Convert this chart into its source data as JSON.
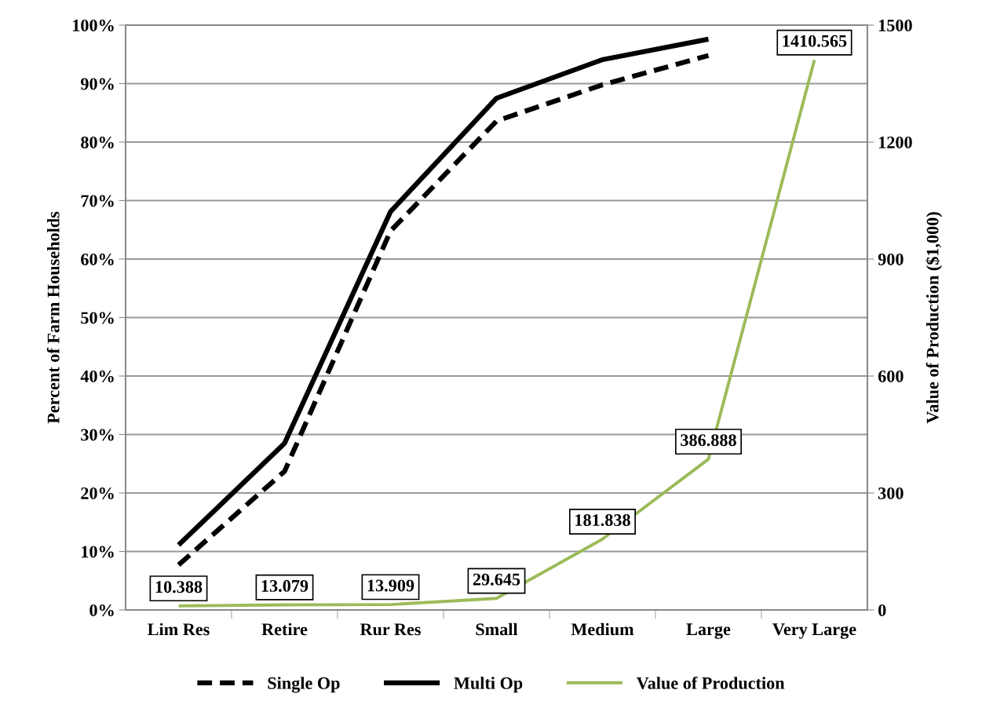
{
  "chart_data": {
    "type": "line",
    "categories": [
      "Lim Res",
      "Retire",
      "Rur Res",
      "Small",
      "Medium",
      "Large",
      "Very Large"
    ],
    "ylabel": "Percent of Farm Households",
    "y2label": "Value of Production ($1,000)",
    "ylim": [
      0,
      100
    ],
    "yticks": [
      {
        "value": 0,
        "label": "0%"
      },
      {
        "value": 10,
        "label": "10%"
      },
      {
        "value": 20,
        "label": "20%"
      },
      {
        "value": 30,
        "label": "30%"
      },
      {
        "value": 40,
        "label": "40%"
      },
      {
        "value": 50,
        "label": "50%"
      },
      {
        "value": 60,
        "label": "60%"
      },
      {
        "value": 70,
        "label": "70%"
      },
      {
        "value": 80,
        "label": "80%"
      },
      {
        "value": 90,
        "label": "90%"
      },
      {
        "value": 100,
        "label": "100%"
      }
    ],
    "y2lim": [
      0,
      1500
    ],
    "y2ticks": [
      0,
      300,
      600,
      900,
      1200,
      1500
    ],
    "grid": "y",
    "legend": "bottom",
    "series": [
      {
        "name": "Single Op",
        "color": "#000000",
        "line_style": "dashed",
        "values": [
          7.7,
          23.7,
          64.8,
          83.6,
          89.8,
          94.8,
          null
        ]
      },
      {
        "name": "Multi Op",
        "color": "#000000",
        "line_style": "solid",
        "values": [
          11.1,
          28.5,
          68.1,
          87.5,
          94.1,
          97.6,
          null
        ]
      },
      {
        "name": "Value of Production",
        "color": "#9bbb59",
        "line_style": "solid",
        "axis": "y2",
        "values": [
          10.388,
          13.079,
          13.909,
          29.645,
          181.838,
          386.888,
          1410.565
        ],
        "value_labels": [
          "10.388",
          "13.079",
          "13.909",
          "29.645",
          "181.838",
          "386.888",
          "1410.565"
        ]
      }
    ]
  }
}
